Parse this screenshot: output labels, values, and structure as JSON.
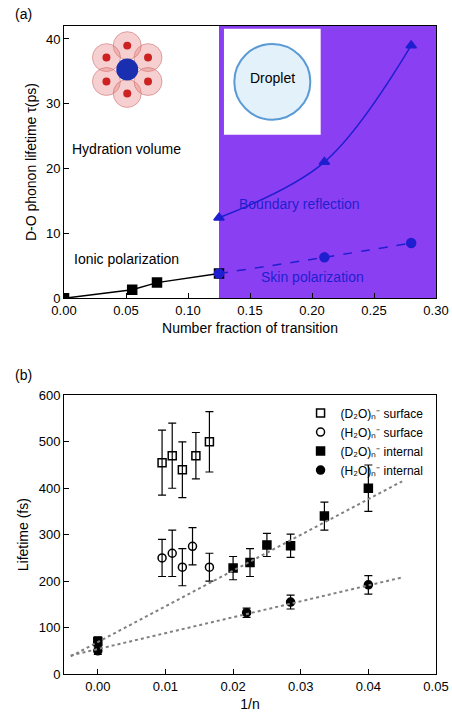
{
  "chart_data": [
    {
      "type": "scatter",
      "label": "(a)",
      "xlabel": "Number fraction of transition",
      "ylabel": "D-O phonon lifetime τ(ps)",
      "xlim": [
        0,
        0.3
      ],
      "xticks": [
        {
          "value": 0,
          "label": "0.00"
        },
        {
          "value": 0.05,
          "label": "0.05"
        },
        {
          "value": 0.1,
          "label": "0.10"
        },
        {
          "value": 0.15,
          "label": "0.15"
        },
        {
          "value": 0.2,
          "label": "0.20"
        },
        {
          "value": 0.25,
          "label": "0.25"
        },
        {
          "value": 0.3,
          "label": "0.30"
        }
      ],
      "ylim": [
        0,
        42
      ],
      "yticks": [
        0,
        10,
        20,
        30,
        40
      ],
      "grid": false,
      "shaded": {
        "x": [
          0.125,
          0.3
        ],
        "color": "#8b3ff2"
      },
      "series": [
        {
          "x": [
            0,
            0.055,
            0.075,
            0.125
          ],
          "values": [
            0,
            1.3,
            2.4,
            3.8
          ],
          "color": "#000000",
          "marker": "square",
          "line_style": "solid"
        },
        {
          "x": [
            0.125,
            0.21,
            0.28
          ],
          "values": [
            3.8,
            6.3,
            8.5
          ],
          "color": "#1f1fd0",
          "marker": "circle",
          "line_style": "dash"
        },
        {
          "x": [
            0.125,
            0.21,
            0.28
          ],
          "values": [
            12.4,
            21,
            39
          ],
          "color": "#1f1fd0",
          "marker": "triangle-up",
          "line_style": "solid"
        }
      ],
      "annotations": [
        {
          "text": "Hydration volume",
          "x": 0.05,
          "y": 23,
          "color": "#000000"
        },
        {
          "text": "Droplet",
          "x": 0.168,
          "y": 34,
          "color": "#000000"
        },
        {
          "text": "Ionic polarization",
          "x": 0.05,
          "y": 6,
          "color": "#000000"
        },
        {
          "text": "Boundary reflection",
          "x": 0.19,
          "y": 14.5,
          "color": "#1f1fd0"
        },
        {
          "text": "Skin polarization",
          "x": 0.2,
          "y": 3.3,
          "color": "#1f1fd0"
        }
      ]
    },
    {
      "type": "scatter",
      "label": "(b)",
      "xlabel": "1/n",
      "ylabel": "Lifetime (fs)",
      "xlim": [
        -0.005,
        0.05
      ],
      "xticks": [
        {
          "value": 0,
          "label": "0.00"
        },
        {
          "value": 0.01,
          "label": "0.01"
        },
        {
          "value": 0.02,
          "label": "0.02"
        },
        {
          "value": 0.03,
          "label": "0.03"
        },
        {
          "value": 0.04,
          "label": "0.04"
        },
        {
          "value": 0.05,
          "label": "0.05"
        }
      ],
      "ylim": [
        0,
        600
      ],
      "yticks": [
        0,
        100,
        200,
        300,
        400,
        500,
        600
      ],
      "grid": false,
      "legend": "upper right",
      "series": [
        {
          "name": "(D₂O)ₙ⁻ surface",
          "x": [
            0.0095,
            0.011,
            0.0125,
            0.0145,
            0.0165
          ],
          "values": [
            455,
            470,
            440,
            470,
            500
          ],
          "errors": [
            70,
            70,
            60,
            50,
            65
          ],
          "color": "#000000",
          "marker": "square-open",
          "line_style": "none"
        },
        {
          "name": "(H₂O)ₙ⁻ surface",
          "x": [
            0.0095,
            0.011,
            0.0125,
            0.014,
            0.0165
          ],
          "values": [
            250,
            260,
            230,
            275,
            230
          ],
          "errors": [
            40,
            50,
            40,
            40,
            30
          ],
          "color": "#000000",
          "marker": "circle-open",
          "line_style": "none"
        },
        {
          "name": "(D₂O)ₙ⁻ internal",
          "x": [
            0,
            0.02,
            0.0225,
            0.025,
            0.0285,
            0.0335,
            0.04
          ],
          "values": [
            70,
            228,
            240,
            278,
            276,
            340,
            400
          ],
          "errors": [
            10,
            25,
            30,
            25,
            25,
            30,
            50
          ],
          "color": "#000000",
          "marker": "square",
          "line_style": "none"
        },
        {
          "name": "(H₂O)ₙ⁻ internal",
          "x": [
            0,
            0.022,
            0.0285,
            0.04
          ],
          "values": [
            50,
            132,
            155,
            192
          ],
          "errors": [
            8,
            10,
            15,
            20
          ],
          "color": "#000000",
          "marker": "circle",
          "line_style": "none"
        },
        {
          "type": "line",
          "x": [
            -0.004,
            0.045
          ],
          "values": [
            38,
            415
          ],
          "color": "#808080",
          "line_style": "dot"
        },
        {
          "type": "line",
          "x": [
            -0.004,
            0.045
          ],
          "values": [
            40,
            208
          ],
          "color": "#808080",
          "line_style": "dot"
        }
      ]
    }
  ]
}
